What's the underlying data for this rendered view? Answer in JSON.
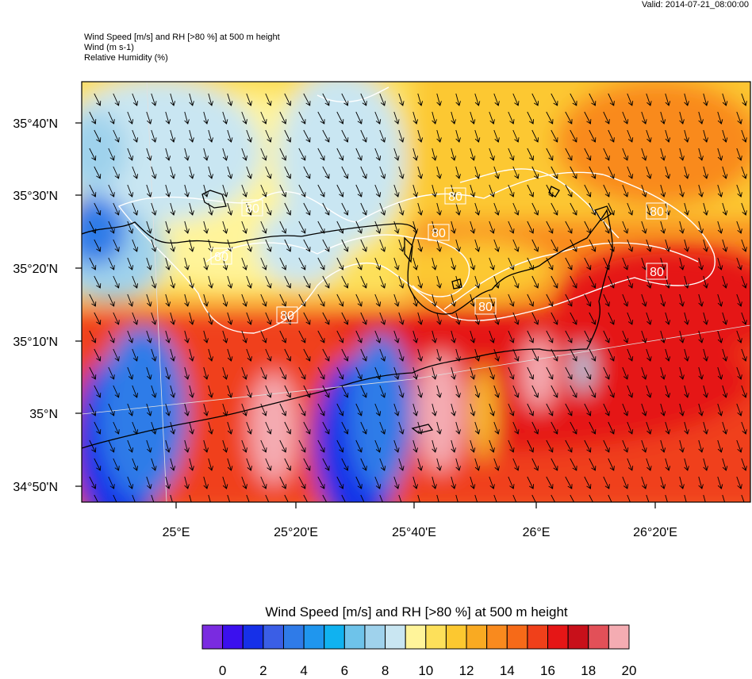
{
  "valid_label": "Valid: 2014-07-21_08:00:00",
  "header": {
    "line1": "Wind Speed [m/s] and RH [>80 %] at 500 m height",
    "line2": "Wind   (m s-1)",
    "line3": "Relative Humidity   (%)"
  },
  "map": {
    "lat_labels": [
      "35°40'N",
      "35°30'N",
      "35°20'N",
      "35°10'N",
      "35°N",
      "34°50'N"
    ],
    "lon_labels": [
      "25°E",
      "25°20'E",
      "25°40'E",
      "26°E",
      "26°20'E"
    ],
    "contour_label": "80",
    "colors": {
      "border": "#000000",
      "contour": "#ffffff",
      "arrow": "#000000"
    }
  },
  "colorbar": {
    "title": "Wind Speed [m/s] and RH [>80 %] at 500 m height",
    "tick_labels": [
      "0",
      "2",
      "4",
      "6",
      "8",
      "10",
      "12",
      "14",
      "16",
      "18",
      "20"
    ],
    "colors": [
      "#7a2be0",
      "#3b10ee",
      "#1630e8",
      "#3a5ee6",
      "#2f7be8",
      "#1f96ee",
      "#10b2f0",
      "#6ec3ea",
      "#9fd2ec",
      "#c9e6f2",
      "#fff49a",
      "#fde05a",
      "#fcc830",
      "#f9aa22",
      "#f98a1e",
      "#f66a18",
      "#f0401a",
      "#e51616",
      "#c8101a",
      "#e25058",
      "#f4acb2"
    ]
  }
}
